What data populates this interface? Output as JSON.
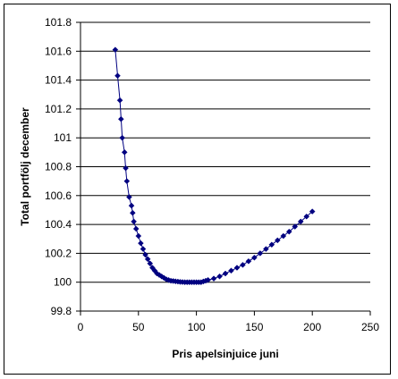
{
  "chart_data": {
    "type": "line",
    "title": "",
    "xlabel": "Pris apelsinjuice juni",
    "ylabel": "Total portfölj december",
    "xlim": [
      0,
      250
    ],
    "ylim": [
      99.8,
      101.8
    ],
    "x_ticks": [
      "0",
      "50",
      "100",
      "150",
      "200",
      "250"
    ],
    "y_ticks": [
      "99.8",
      "100",
      "100.2",
      "100.4",
      "100.6",
      "100.8",
      "101",
      "101.2",
      "101.4",
      "101.6",
      "101.8"
    ],
    "grid": "horizontal",
    "legend": "none",
    "marker": "diamond",
    "colors": {
      "series": "#000080",
      "grid": "#000000",
      "axis": "#000000"
    },
    "series": [
      {
        "x": [
          30,
          32,
          34,
          35,
          36,
          38,
          39,
          40,
          42,
          44,
          45,
          46,
          48,
          50,
          52,
          54,
          56,
          58,
          60,
          62,
          64,
          66,
          68,
          70,
          72,
          74,
          76,
          78,
          80,
          82,
          84,
          86,
          88,
          90,
          92,
          94,
          96,
          98,
          100,
          102,
          104,
          106,
          108,
          110,
          115,
          120,
          125,
          130,
          135,
          140,
          145,
          150,
          155,
          160,
          165,
          170,
          175,
          180,
          185,
          190,
          195,
          200
        ],
        "y": [
          101.61,
          101.43,
          101.26,
          101.13,
          101.0,
          100.9,
          100.79,
          100.7,
          100.59,
          100.53,
          100.48,
          100.42,
          100.37,
          100.32,
          100.27,
          100.23,
          100.19,
          100.16,
          100.13,
          100.1,
          100.08,
          100.06,
          100.05,
          100.04,
          100.03,
          100.02,
          100.015,
          100.01,
          100.008,
          100.006,
          100.004,
          100.002,
          100.001,
          100.0,
          100.0,
          100.0,
          100.0,
          100.0,
          100.0,
          100.0,
          100.0,
          100.005,
          100.01,
          100.015,
          100.025,
          100.04,
          100.06,
          100.08,
          100.1,
          100.12,
          100.145,
          100.17,
          100.2,
          100.23,
          100.26,
          100.29,
          100.32,
          100.35,
          100.385,
          100.42,
          100.455,
          100.49
        ]
      }
    ]
  }
}
